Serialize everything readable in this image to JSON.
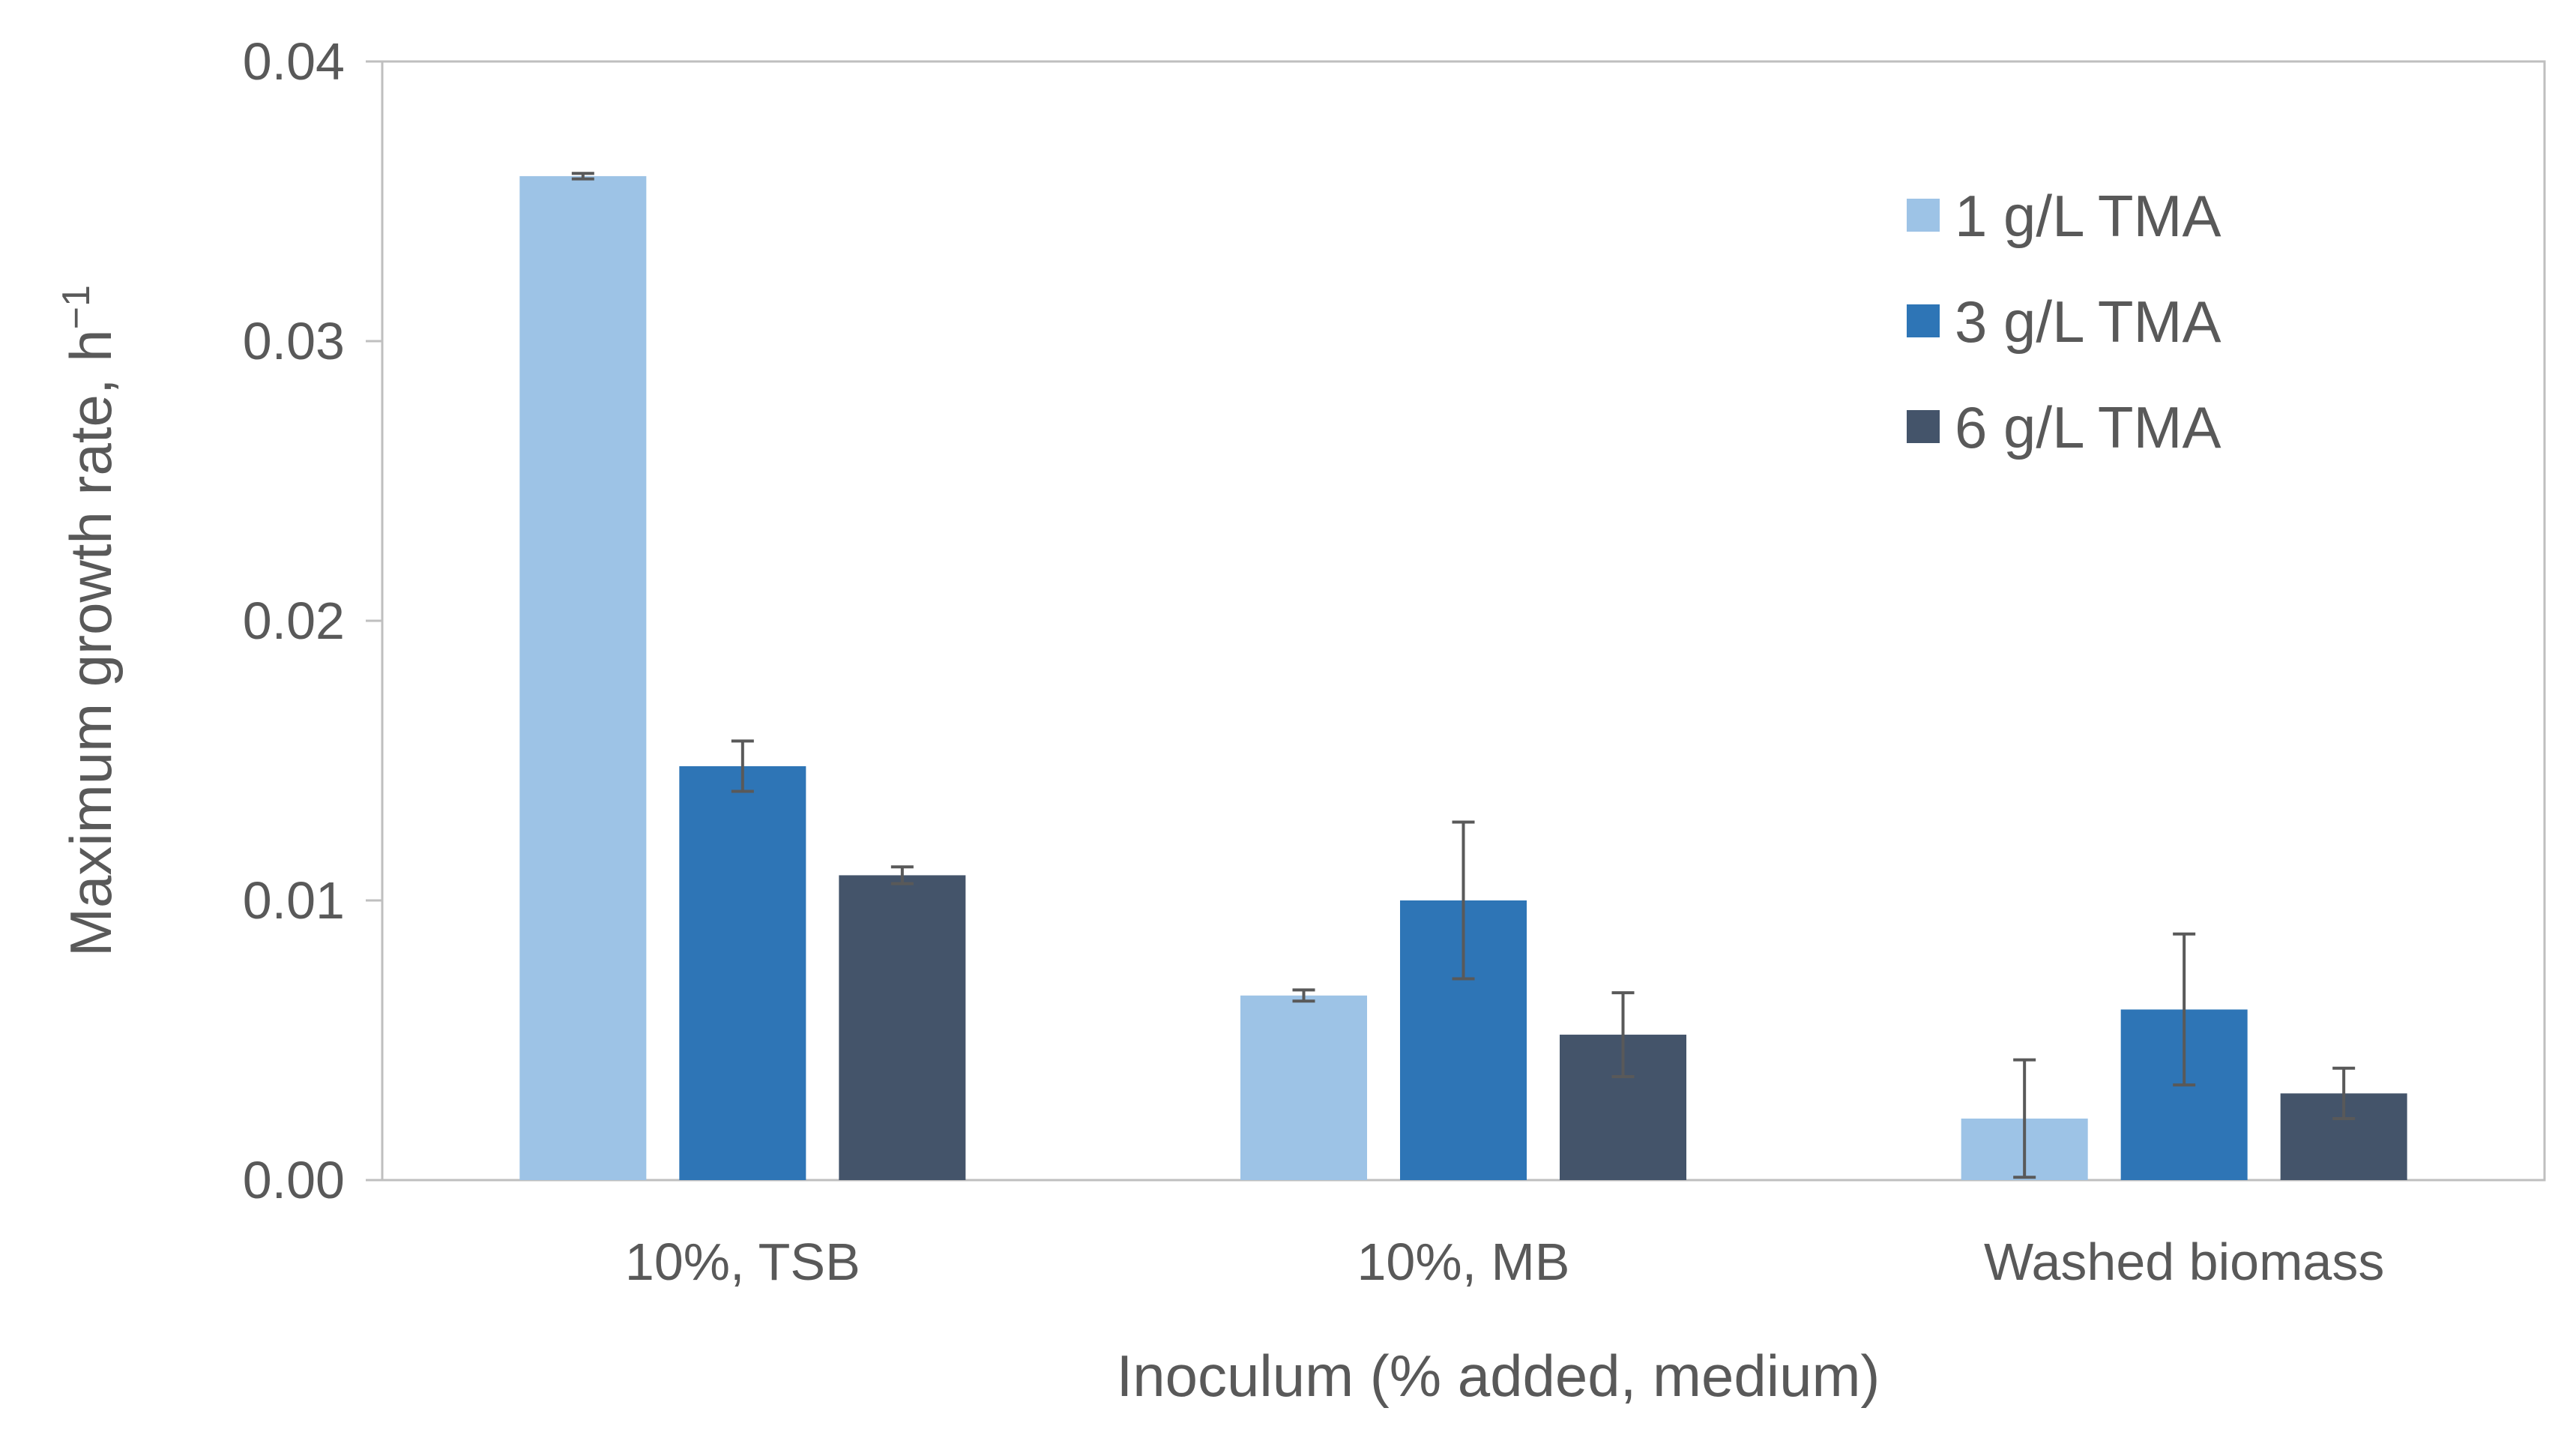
{
  "chart_data": {
    "type": "bar",
    "xlabel": "Inoculum (% added,  medium)",
    "ylabel": "Maximum growth rate,  h",
    "ylabel_superscript": "−1",
    "ylim": [
      0,
      0.04
    ],
    "yticks": [
      "0.00",
      "0.01",
      "0.02",
      "0.03",
      "0.04"
    ],
    "ytick_values": [
      0,
      0.01,
      0.02,
      0.03,
      0.04
    ],
    "grid": false,
    "legend_position": "top-right",
    "categories": [
      "10%, TSB",
      "10%, MB",
      "Washed biomass"
    ],
    "series": [
      {
        "name": "1 g/L TMA",
        "color": "#9DC3E6",
        "values": [
          0.0359,
          0.0066,
          0.0022
        ],
        "errors": [
          0.0001,
          0.0002,
          0.0021
        ]
      },
      {
        "name": "3 g/L TMA",
        "color": "#2E75B6",
        "values": [
          0.0148,
          0.01,
          0.0061
        ],
        "errors": [
          0.0009,
          0.0028,
          0.0027
        ]
      },
      {
        "name": "6 g/L TMA",
        "color": "#44546A",
        "values": [
          0.0109,
          0.0052,
          0.0031
        ],
        "errors": [
          0.0003,
          0.0015,
          0.0009
        ]
      }
    ]
  }
}
